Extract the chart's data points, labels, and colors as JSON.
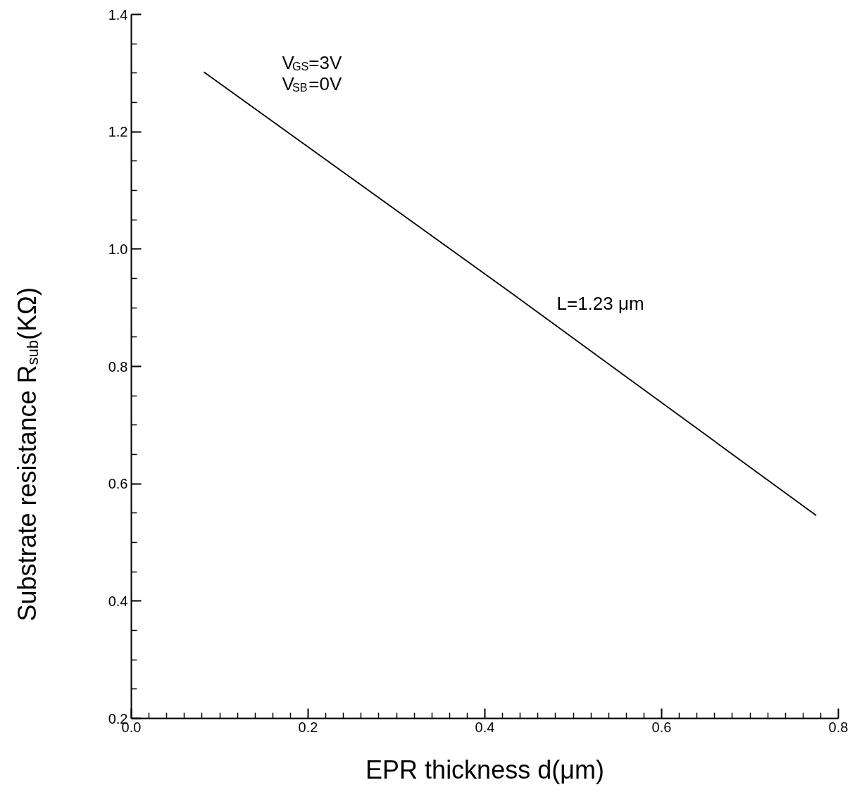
{
  "chart_data": {
    "type": "line",
    "xlabel": "EPR thickness d(μm)",
    "ylabel": "Substrate resistance R$_{sub}$(KΩ)",
    "x": [
      0.082,
      0.43,
      0.775
    ],
    "series": [
      {
        "color": "#000000",
        "values": [
          1.302,
          0.925,
          0.546
        ]
      }
    ],
    "annotations": [
      "V$_{GS}$=3V",
      "V$_{SB}$=0V",
      "L=1.23 μm"
    ],
    "xlim": [
      0,
      0.8
    ],
    "ylim": [
      0.2,
      1.4
    ],
    "xticks": [
      {
        "value": 0,
        "label": "0.0"
      },
      {
        "value": 0.02,
        "label": null
      },
      {
        "value": 0.04,
        "label": null
      },
      {
        "value": 0.06,
        "label": null
      },
      {
        "value": 0.08,
        "label": null
      },
      {
        "value": 0.1,
        "label": null
      },
      {
        "value": 0.12,
        "label": null
      },
      {
        "value": 0.14,
        "label": null
      },
      {
        "value": 0.16,
        "label": null
      },
      {
        "value": 0.18,
        "label": null
      },
      {
        "value": 0.2,
        "label": "0.2"
      },
      {
        "value": 0.22,
        "label": null
      },
      {
        "value": 0.24,
        "label": null
      },
      {
        "value": 0.26,
        "label": null
      },
      {
        "value": 0.28,
        "label": null
      },
      {
        "value": 0.3,
        "label": null
      },
      {
        "value": 0.32,
        "label": null
      },
      {
        "value": 0.34,
        "label": null
      },
      {
        "value": 0.36,
        "label": null
      },
      {
        "value": 0.38,
        "label": null
      },
      {
        "value": 0.4,
        "label": "0.4"
      },
      {
        "value": 0.42,
        "label": null
      },
      {
        "value": 0.44,
        "label": null
      },
      {
        "value": 0.46,
        "label": null
      },
      {
        "value": 0.48,
        "label": null
      },
      {
        "value": 0.5,
        "label": null
      },
      {
        "value": 0.52,
        "label": null
      },
      {
        "value": 0.54,
        "label": null
      },
      {
        "value": 0.56,
        "label": null
      },
      {
        "value": 0.58,
        "label": null
      },
      {
        "value": 0.6,
        "label": "0.6"
      },
      {
        "value": 0.62,
        "label": null
      },
      {
        "value": 0.64,
        "label": null
      },
      {
        "value": 0.66,
        "label": null
      },
      {
        "value": 0.68,
        "label": null
      },
      {
        "value": 0.7,
        "label": null
      },
      {
        "value": 0.72,
        "label": null
      },
      {
        "value": 0.74,
        "label": null
      },
      {
        "value": 0.76,
        "label": null
      },
      {
        "value": 0.78,
        "label": null
      },
      {
        "value": 0.8,
        "label": "0.8"
      }
    ],
    "yticks": [
      {
        "value": 0.2,
        "label": "0.2"
      },
      {
        "value": 0.25,
        "label": null
      },
      {
        "value": 0.3,
        "label": null
      },
      {
        "value": 0.35,
        "label": null
      },
      {
        "value": 0.4,
        "label": "0.4"
      },
      {
        "value": 0.45,
        "label": null
      },
      {
        "value": 0.5,
        "label": null
      },
      {
        "value": 0.55,
        "label": null
      },
      {
        "value": 0.6,
        "label": "0.6"
      },
      {
        "value": 0.65,
        "label": null
      },
      {
        "value": 0.7,
        "label": null
      },
      {
        "value": 0.75,
        "label": null
      },
      {
        "value": 0.8,
        "label": "0.8"
      },
      {
        "value": 0.85,
        "label": null
      },
      {
        "value": 0.9,
        "label": null
      },
      {
        "value": 0.95,
        "label": null
      },
      {
        "value": 1.0,
        "label": "1.0"
      },
      {
        "value": 1.05,
        "label": null
      },
      {
        "value": 1.1,
        "label": null
      },
      {
        "value": 1.15,
        "label": null
      },
      {
        "value": 1.2,
        "label": "1.2"
      },
      {
        "value": 1.25,
        "label": null
      },
      {
        "value": 1.3,
        "label": null
      },
      {
        "value": 1.35,
        "label": null
      },
      {
        "value": 1.4,
        "label": "1.4"
      }
    ],
    "grid": false,
    "marker": "none",
    "line_style": "solid"
  }
}
